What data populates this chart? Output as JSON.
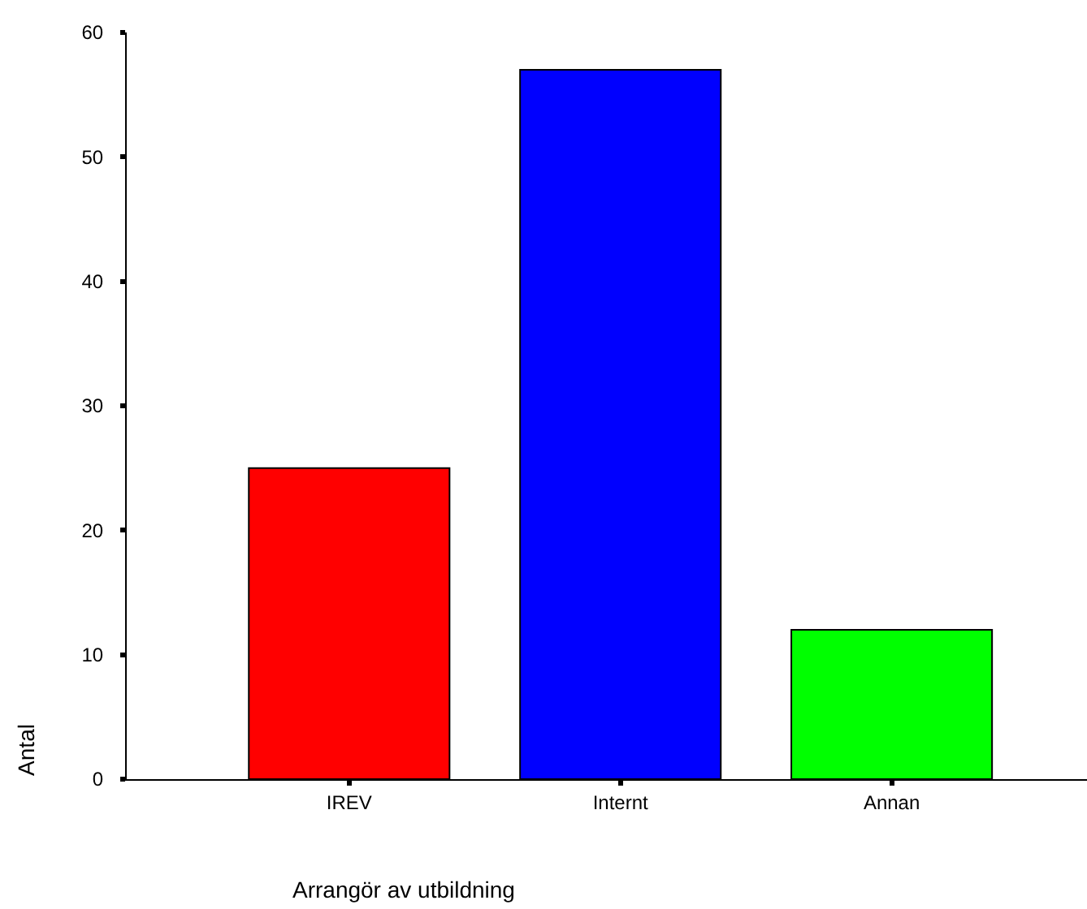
{
  "chart_data": {
    "type": "bar",
    "categories": [
      "IREV",
      "Internt",
      "Annan"
    ],
    "values": [
      25,
      57,
      12
    ],
    "colors": [
      "#ff0000",
      "#0000ff",
      "#00ff00"
    ],
    "xlabel": "Arrangör av utbildning",
    "ylabel": "Antal",
    "ylim": [
      0,
      60
    ],
    "yticks": [
      0,
      10,
      20,
      30,
      40,
      50,
      60
    ]
  }
}
